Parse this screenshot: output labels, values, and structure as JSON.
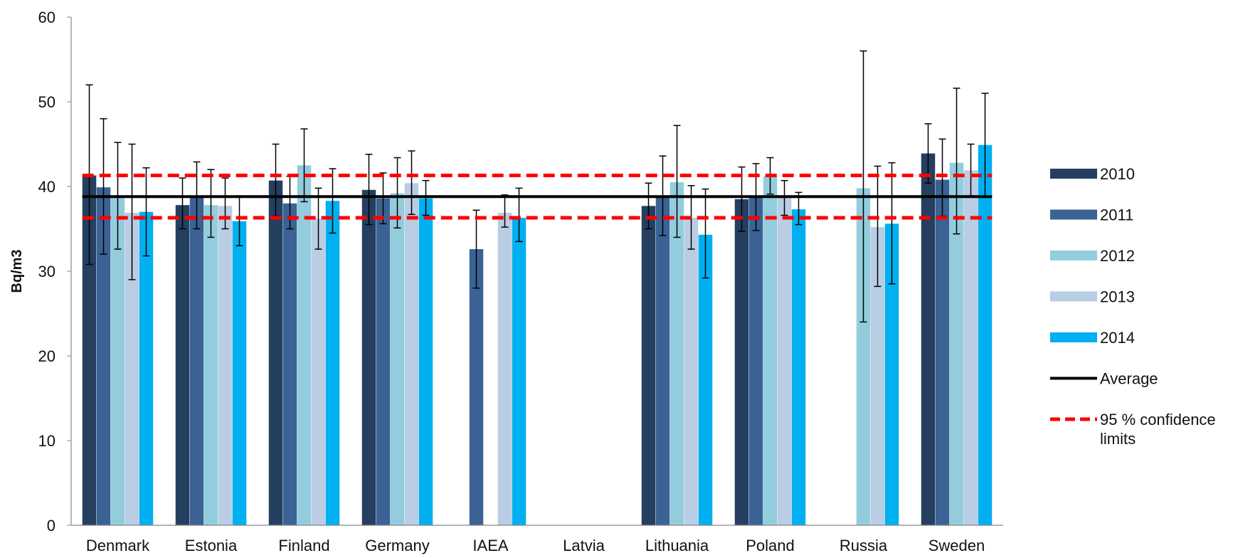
{
  "chart_data": {
    "type": "bar",
    "title": "",
    "xlabel": "",
    "ylabel": "Bq/m3",
    "ylim": [
      0,
      60
    ],
    "yticks": [
      0,
      10,
      20,
      30,
      40,
      50,
      60
    ],
    "grid": false,
    "legend_position": "right",
    "categories": [
      "Denmark",
      "Estonia",
      "Finland",
      "Germany",
      "IAEA",
      "Latvia",
      "Lithuania",
      "Poland",
      "Russia",
      "Sweden"
    ],
    "series": [
      {
        "name": "2010",
        "color": "#243F60",
        "values": [
          41.3,
          37.8,
          40.7,
          39.6,
          null,
          null,
          37.7,
          38.5,
          null,
          43.9
        ],
        "error_low": [
          30.8,
          35.0,
          36.5,
          35.5,
          null,
          null,
          35.0,
          34.7,
          null,
          40.4
        ],
        "error_high": [
          52.0,
          41.0,
          45.0,
          43.8,
          null,
          null,
          40.4,
          42.3,
          null,
          47.4
        ]
      },
      {
        "name": "2011",
        "color": "#3A6294",
        "values": [
          39.9,
          38.9,
          38.0,
          38.6,
          32.6,
          null,
          38.8,
          38.7,
          null,
          40.8
        ],
        "error_low": [
          32.0,
          35.0,
          35.0,
          35.6,
          28.0,
          null,
          34.2,
          34.8,
          null,
          36.5
        ],
        "error_high": [
          48.0,
          42.9,
          41.2,
          41.6,
          37.2,
          null,
          43.6,
          42.7,
          null,
          45.6
        ]
      },
      {
        "name": "2012",
        "color": "#93CDDD",
        "values": [
          38.9,
          37.8,
          42.5,
          39.2,
          null,
          null,
          40.5,
          41.2,
          39.8,
          42.8
        ],
        "error_low": [
          32.6,
          34.0,
          38.2,
          35.1,
          null,
          null,
          34.0,
          39.1,
          24.0,
          34.4
        ],
        "error_high": [
          45.2,
          42.0,
          46.8,
          43.4,
          null,
          null,
          47.2,
          43.4,
          56.0,
          51.6
        ]
      },
      {
        "name": "2013",
        "color": "#B9CDE5",
        "values": [
          36.9,
          37.7,
          36.2,
          40.4,
          36.9,
          null,
          36.3,
          38.7,
          35.2,
          41.9
        ],
        "error_low": [
          29.0,
          35.0,
          32.6,
          36.7,
          35.2,
          null,
          32.6,
          36.6,
          28.2,
          38.9
        ],
        "error_high": [
          45.0,
          41.0,
          39.8,
          44.2,
          39.0,
          null,
          40.1,
          40.7,
          42.4,
          45.0
        ]
      },
      {
        "name": "2014",
        "color": "#00B0F0",
        "values": [
          37.0,
          35.9,
          38.3,
          38.6,
          36.3,
          null,
          34.3,
          37.3,
          35.6,
          44.9
        ],
        "error_low": [
          31.8,
          33.0,
          34.5,
          36.6,
          33.5,
          null,
          29.2,
          35.5,
          28.5,
          38.8
        ],
        "error_high": [
          42.2,
          38.9,
          42.1,
          40.7,
          39.8,
          null,
          39.7,
          39.3,
          42.8,
          51.0
        ]
      }
    ],
    "reference_lines": [
      {
        "name": "Average",
        "value": 38.8,
        "color": "#000000",
        "style": "solid"
      },
      {
        "name": "95 % confidence limits",
        "values": [
          36.3,
          41.3
        ],
        "color": "#FF0000",
        "style": "dashed"
      }
    ]
  }
}
